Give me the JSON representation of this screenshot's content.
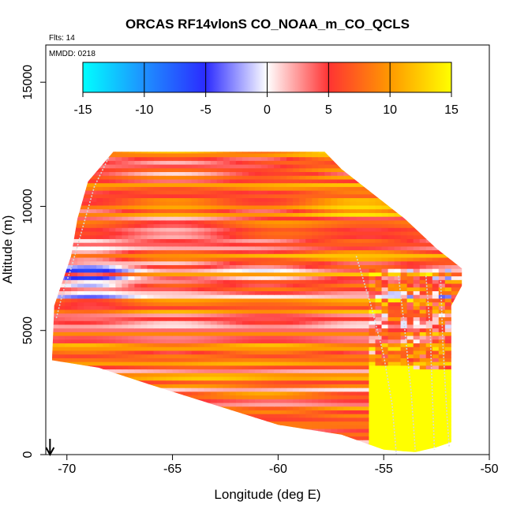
{
  "chart_data": {
    "type": "heatmap",
    "title": "ORCAS RF14vlonS CO_NOAA_m_CO_QCLS",
    "annotations": [
      "Flts: 14",
      "MMDD: 0218"
    ],
    "xlabel": "Longitude (deg E)",
    "ylabel": "Altitude (m)",
    "xlim": [
      -71,
      -50
    ],
    "ylim": [
      0,
      16500
    ],
    "x_ticks": [
      -70,
      -65,
      -60,
      -55,
      -50
    ],
    "x_tick_labels": [
      "-70",
      "-65",
      "-60",
      "-55",
      "-50"
    ],
    "y_ticks": [
      0,
      5000,
      10000,
      15000
    ],
    "y_tick_labels": [
      "0",
      "5000",
      "10000",
      "15000"
    ],
    "colorbar": {
      "range": [
        -15,
        15
      ],
      "ticks": [
        -15,
        -10,
        -5,
        0,
        5,
        10,
        15
      ],
      "tick_labels": [
        "-15",
        "-10",
        "-5",
        "0",
        "5",
        "10",
        "15"
      ],
      "stops": [
        {
          "value": -15,
          "color": "#00ffff"
        },
        {
          "value": -10,
          "color": "#1e90ff"
        },
        {
          "value": -5,
          "color": "#2b2bff"
        },
        {
          "value": 0,
          "color": "#ffffff"
        },
        {
          "value": 5,
          "color": "#ff3333"
        },
        {
          "value": 10,
          "color": "#ff9900"
        },
        {
          "value": 15,
          "color": "#ffff00"
        }
      ]
    },
    "domain_outline": [
      [
        -70.7,
        3800
      ],
      [
        -70.6,
        6000
      ],
      [
        -69.8,
        8000
      ],
      [
        -69.5,
        9500
      ],
      [
        -69.0,
        11000
      ],
      [
        -67.8,
        12200
      ],
      [
        -57.8,
        12200
      ],
      [
        -57.0,
        11500
      ],
      [
        -55.5,
        10500
      ],
      [
        -54.0,
        9500
      ],
      [
        -52.5,
        8300
      ],
      [
        -51.3,
        7500
      ],
      [
        -51.3,
        6800
      ],
      [
        -51.8,
        6000
      ],
      [
        -51.8,
        500
      ],
      [
        -52.5,
        300
      ],
      [
        -53.5,
        100
      ],
      [
        -55.0,
        200
      ],
      [
        -57.0,
        800
      ],
      [
        -60.0,
        1200
      ],
      [
        -63.0,
        2000
      ],
      [
        -66.0,
        2800
      ],
      [
        -68.5,
        3500
      ]
    ],
    "flight_tracks": [
      [
        [
          -70.5,
          5500
        ],
        [
          -70.2,
          6500
        ],
        [
          -69.8,
          7500
        ],
        [
          -69.3,
          9000
        ],
        [
          -68.7,
          10800
        ],
        [
          -68.0,
          12000
        ]
      ],
      [
        [
          -56.3,
          8000
        ],
        [
          -55.6,
          6000
        ],
        [
          -55.0,
          4000
        ],
        [
          -54.6,
          2000
        ],
        [
          -54.4,
          0
        ]
      ],
      [
        [
          -54.3,
          7200
        ],
        [
          -54.0,
          5000
        ],
        [
          -53.7,
          2500
        ],
        [
          -53.5,
          100
        ]
      ],
      [
        [
          -53.0,
          7200
        ],
        [
          -52.8,
          5000
        ],
        [
          -52.7,
          2500
        ],
        [
          -52.6,
          200
        ]
      ],
      [
        [
          -52.3,
          7000
        ],
        [
          -52.2,
          4500
        ],
        [
          -52.0,
          1500
        ],
        [
          -51.9,
          300
        ]
      ]
    ],
    "arrow_longitude": -70.8
  }
}
